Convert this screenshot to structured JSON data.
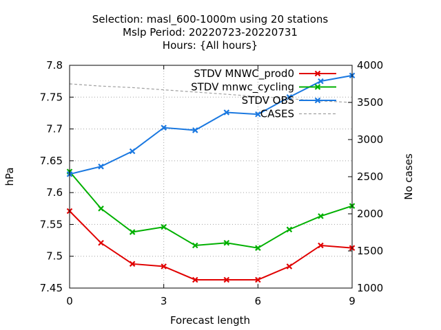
{
  "chart_data": {
    "type": "line",
    "title_lines": [
      "Selection: masl_600-1000m using    20 stations",
      "Mslp   Period: 20220723-20220731",
      "Hours: {All hours}"
    ],
    "xlabel": "Forecast length",
    "ylabel": "hPa",
    "y2label": "No cases",
    "xlim": [
      0,
      9
    ],
    "ylim": [
      7.45,
      7.8
    ],
    "y2lim": [
      1000,
      4000
    ],
    "x_ticks": [
      0,
      3,
      6,
      9
    ],
    "y_ticks": [
      7.45,
      7.5,
      7.55,
      7.6,
      7.65,
      7.7,
      7.75,
      7.8
    ],
    "y2_ticks": [
      1000,
      1500,
      2000,
      2500,
      3000,
      3500,
      4000
    ],
    "x_tick_labels": [
      "0",
      "3",
      "6",
      "9"
    ],
    "y_tick_labels": [
      "7.45",
      "7.5",
      "7.55",
      "7.6",
      "7.65",
      "7.7",
      "7.75",
      "7.8"
    ],
    "y2_tick_labels": [
      "1000",
      "1500",
      "2000",
      "2500",
      "3000",
      "3500",
      "4000"
    ],
    "grid": true,
    "legend_position": "top-right",
    "x": [
      0,
      1,
      2,
      3,
      4,
      5,
      6,
      7,
      8,
      9
    ],
    "series": [
      {
        "name": "STDV MNWC_prod0",
        "axis": "y",
        "color": "#e00000",
        "marker": "x",
        "values": [
          7.571,
          7.521,
          7.488,
          7.484,
          7.463,
          7.463,
          7.463,
          7.484,
          7.517,
          7.513
        ]
      },
      {
        "name": "STDV mnwc_cycling",
        "axis": "y",
        "color": "#00b000",
        "marker": "x",
        "values": [
          7.633,
          7.575,
          7.538,
          7.546,
          7.517,
          7.521,
          7.513,
          7.542,
          7.563,
          7.579
        ]
      },
      {
        "name": "STDV OBS",
        "axis": "y",
        "color": "#1a78e0",
        "marker": "x",
        "values": [
          7.629,
          7.641,
          7.665,
          7.702,
          7.698,
          7.726,
          7.723,
          7.75,
          7.775,
          7.784
        ]
      },
      {
        "name": "CASES",
        "axis": "y2",
        "color": "#a0a0a0",
        "dashed": true,
        "values": [
          3750,
          3720,
          3700,
          3670,
          3640,
          3610,
          3580,
          3550,
          3520,
          3500
        ]
      }
    ]
  }
}
